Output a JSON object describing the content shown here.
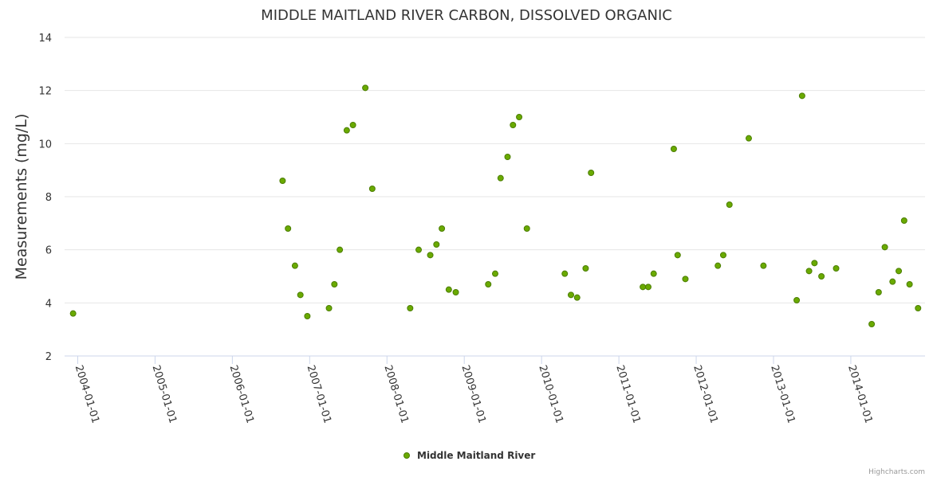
{
  "chart_data": {
    "type": "scatter",
    "title": "MIDDLE MAITLAND RIVER CARBON, DISSOLVED ORGANIC",
    "xlabel": "",
    "ylabel": "Measurements (mg/L)",
    "ylim": [
      2,
      14
    ],
    "yticks": [
      2,
      4,
      6,
      8,
      10,
      12,
      14
    ],
    "xlim_years": [
      2003.83,
      2014.96
    ],
    "xticks": [
      {
        "label": "2004-01-01",
        "year": 2004
      },
      {
        "label": "2005-01-01",
        "year": 2005
      },
      {
        "label": "2006-01-01",
        "year": 2006
      },
      {
        "label": "2007-01-01",
        "year": 2007
      },
      {
        "label": "2008-01-01",
        "year": 2008
      },
      {
        "label": "2009-01-01",
        "year": 2009
      },
      {
        "label": "2010-01-01",
        "year": 2010
      },
      {
        "label": "2011-01-01",
        "year": 2011
      },
      {
        "label": "2012-01-01",
        "year": 2012
      },
      {
        "label": "2013-01-01",
        "year": 2013
      },
      {
        "label": "2014-01-01",
        "year": 2014
      }
    ],
    "grid": true,
    "legend_position": "bottom-center",
    "series": [
      {
        "name": "Middle Maitland River",
        "color": "#6aaa00",
        "stroke": "#4b7d00",
        "points": [
          [
            2003.94,
            3.6
          ],
          [
            2006.65,
            8.6
          ],
          [
            2006.72,
            6.8
          ],
          [
            2006.81,
            5.4
          ],
          [
            2006.88,
            4.3
          ],
          [
            2006.97,
            3.5
          ],
          [
            2007.25,
            3.8
          ],
          [
            2007.32,
            4.7
          ],
          [
            2007.39,
            6.0
          ],
          [
            2007.48,
            10.5
          ],
          [
            2007.56,
            10.7
          ],
          [
            2007.72,
            12.1
          ],
          [
            2007.81,
            8.3
          ],
          [
            2008.3,
            3.8
          ],
          [
            2008.41,
            6.0
          ],
          [
            2008.56,
            5.8
          ],
          [
            2008.64,
            6.2
          ],
          [
            2008.71,
            6.8
          ],
          [
            2008.8,
            4.5
          ],
          [
            2008.89,
            4.4
          ],
          [
            2009.31,
            4.7
          ],
          [
            2009.4,
            5.1
          ],
          [
            2009.47,
            8.7
          ],
          [
            2009.56,
            9.5
          ],
          [
            2009.63,
            10.7
          ],
          [
            2009.71,
            11.0
          ],
          [
            2009.81,
            6.8
          ],
          [
            2010.3,
            5.1
          ],
          [
            2010.38,
            4.3
          ],
          [
            2010.46,
            4.2
          ],
          [
            2010.57,
            5.3
          ],
          [
            2010.64,
            8.9
          ],
          [
            2011.31,
            4.6
          ],
          [
            2011.38,
            4.6
          ],
          [
            2011.45,
            5.1
          ],
          [
            2011.71,
            9.8
          ],
          [
            2011.76,
            5.8
          ],
          [
            2011.86,
            4.9
          ],
          [
            2012.28,
            5.4
          ],
          [
            2012.35,
            5.8
          ],
          [
            2012.43,
            7.7
          ],
          [
            2012.68,
            10.2
          ],
          [
            2012.87,
            5.4
          ],
          [
            2013.3,
            4.1
          ],
          [
            2013.37,
            11.8
          ],
          [
            2013.46,
            5.2
          ],
          [
            2013.53,
            5.5
          ],
          [
            2013.62,
            5.0
          ],
          [
            2013.81,
            5.3
          ],
          [
            2014.27,
            3.2
          ],
          [
            2014.36,
            4.4
          ],
          [
            2014.44,
            6.1
          ],
          [
            2014.54,
            4.8
          ],
          [
            2014.62,
            5.2
          ],
          [
            2014.69,
            7.1
          ],
          [
            2014.76,
            4.7
          ],
          [
            2014.87,
            3.8
          ]
        ]
      }
    ]
  },
  "credits": "Highcharts.com"
}
